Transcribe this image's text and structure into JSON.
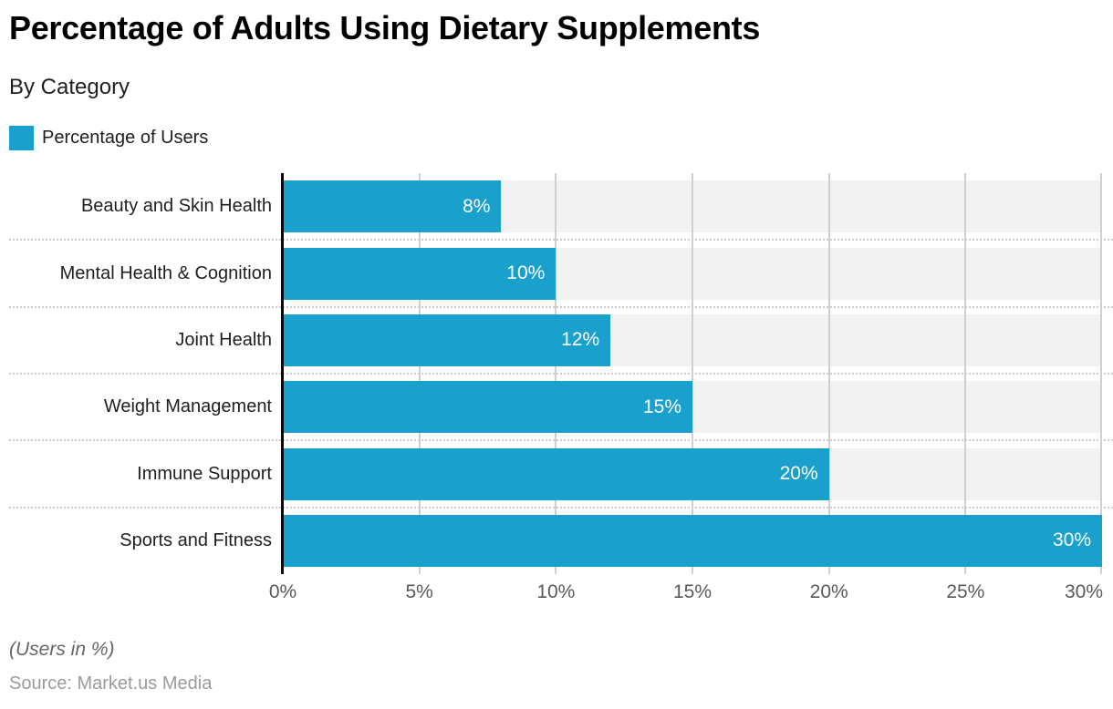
{
  "chart_data": {
    "type": "bar",
    "orientation": "horizontal",
    "title": "Percentage of Adults Using Dietary Supplements",
    "subtitle": "By Category",
    "legend": {
      "label": "Percentage of Users",
      "position": "top-left"
    },
    "categories": [
      "Beauty and Skin Health",
      "Mental Health & Cognition",
      "Joint Health",
      "Weight Management",
      "Immune Support",
      "Sports and Fitness"
    ],
    "values": [
      8,
      10,
      12,
      15,
      20,
      30
    ],
    "bar_labels": [
      "8%",
      "10%",
      "12%",
      "15%",
      "20%",
      "30%"
    ],
    "x_ticks": [
      "0%",
      "5%",
      "10%",
      "15%",
      "20%",
      "25%",
      "30%"
    ],
    "xlim": [
      0,
      30
    ],
    "grid": true,
    "colors": {
      "bar": "#1AA0CC",
      "row_band": "#f2f2f2",
      "gridline": "#cfcfcf",
      "separator": "#cccccc",
      "axis_line": "#0a0a0a",
      "bar_label_text": "#ffffff"
    },
    "note": "(Users in %)",
    "source": "Source: Market.us Media"
  }
}
